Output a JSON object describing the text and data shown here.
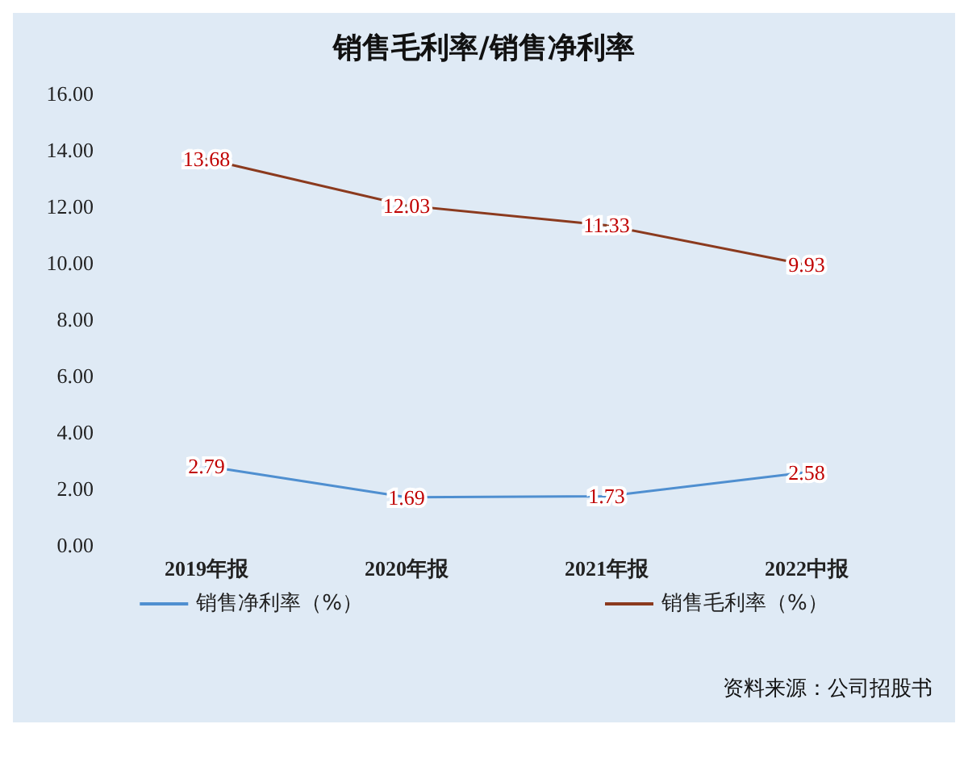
{
  "chart_data": {
    "type": "line",
    "title": "销售毛利率/销售净利率",
    "categories": [
      "2019年报",
      "2020年报",
      "2021年报",
      "2022中报"
    ],
    "series": [
      {
        "name": "销售净利率（%）",
        "color": "#4f8fd0",
        "values": [
          2.79,
          1.69,
          1.73,
          2.58
        ]
      },
      {
        "name": "销售毛利率（%）",
        "color": "#8b3a1e",
        "values": [
          13.68,
          12.03,
          11.33,
          9.93
        ]
      }
    ],
    "ylim": [
      0,
      16
    ],
    "yticks": [
      {
        "value": 0,
        "label": "0.00"
      },
      {
        "value": 2,
        "label": "2.00"
      },
      {
        "value": 4,
        "label": "4.00"
      },
      {
        "value": 6,
        "label": "6.00"
      },
      {
        "value": 8,
        "label": "8.00"
      },
      {
        "value": 10,
        "label": "10.00"
      },
      {
        "value": 12,
        "label": "12.00"
      },
      {
        "value": 14,
        "label": "14.00"
      },
      {
        "value": 16,
        "label": "16.00"
      }
    ],
    "data_labels": true,
    "grid": false,
    "legend": "bottom",
    "marker": "none",
    "line_style": "solid",
    "annotations": [
      "资料来源：公司招股书"
    ]
  }
}
